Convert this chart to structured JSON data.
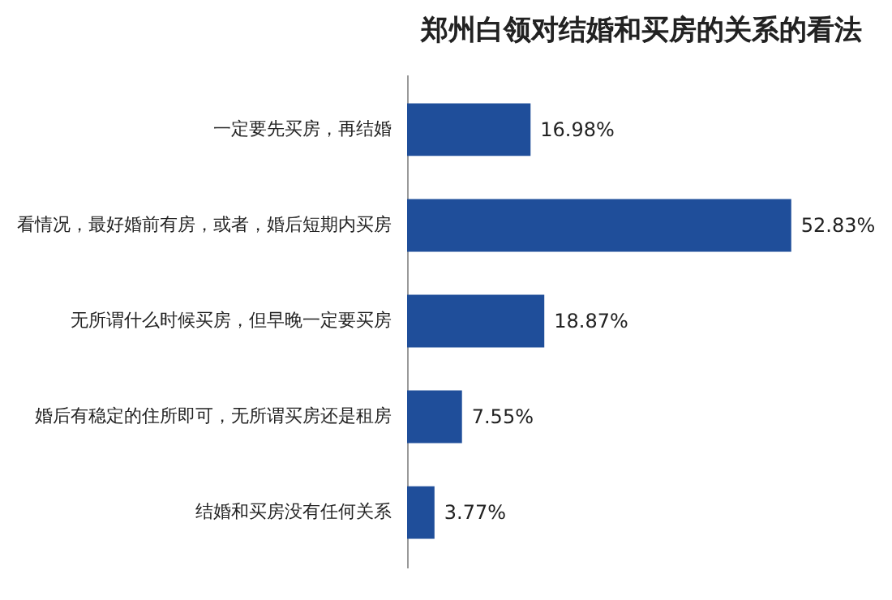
{
  "chart_data": {
    "type": "bar",
    "orientation": "horizontal",
    "title": "郑州白领对结婚和买房的关系的看法",
    "categories": [
      "一定要先买房，再结婚",
      "看情况，最好婚前有房，或者，婚后短期内买房",
      "无所谓什么时候买房，但早晚一定要买房",
      "婚后有稳定的住所即可，无所谓买房还是租房",
      "结婚和买房没有任何关系"
    ],
    "values": [
      16.98,
      52.83,
      18.87,
      7.55,
      3.77
    ],
    "value_labels": [
      "16.98%",
      "52.83%",
      "18.87%",
      "7.55%",
      "3.77%"
    ],
    "color": "#1f4e9a"
  }
}
